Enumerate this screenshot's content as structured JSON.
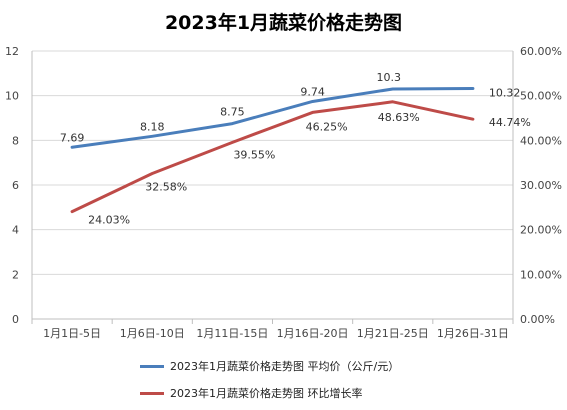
{
  "chart_data": {
    "type": "line",
    "title": "2023年1月蔬菜价格走势图",
    "categories": [
      "1月1日-5日",
      "1月6日-10日",
      "1月11日-15日",
      "1月16日-20日",
      "1月21日-25日",
      "1月26日-31日"
    ],
    "series": [
      {
        "name": "2023年1月蔬菜价格走势图 平均价（公斤/元）",
        "axis": "left",
        "color": "#4a7ebb",
        "values": [
          7.69,
          8.18,
          8.75,
          9.74,
          10.3,
          10.32
        ],
        "labels": [
          "7.69",
          "8.18",
          "8.75",
          "9.74",
          "10.3",
          "10.32"
        ]
      },
      {
        "name": "2023年1月蔬菜价格走势图 环比增长率",
        "axis": "right",
        "color": "#be4b48",
        "values": [
          24.03,
          32.58,
          39.55,
          46.25,
          48.63,
          44.74
        ],
        "labels": [
          "24.03%",
          "32.58%",
          "39.55%",
          "46.25%",
          "48.63%",
          "44.74%"
        ]
      }
    ],
    "y_left": {
      "range": [
        0,
        12
      ],
      "ticks": [
        0,
        2,
        4,
        6,
        8,
        10,
        12
      ],
      "tick_labels": [
        "0",
        "2",
        "4",
        "6",
        "8",
        "10",
        "12"
      ]
    },
    "y_right": {
      "range": [
        0,
        60
      ],
      "ticks": [
        0,
        10,
        20,
        30,
        40,
        50,
        60
      ],
      "tick_labels": [
        "0.00%",
        "10.00%",
        "20.00%",
        "30.00%",
        "40.00%",
        "50.00%",
        "60.00%"
      ]
    },
    "grid": "horizontal",
    "legend_position": "bottom"
  }
}
